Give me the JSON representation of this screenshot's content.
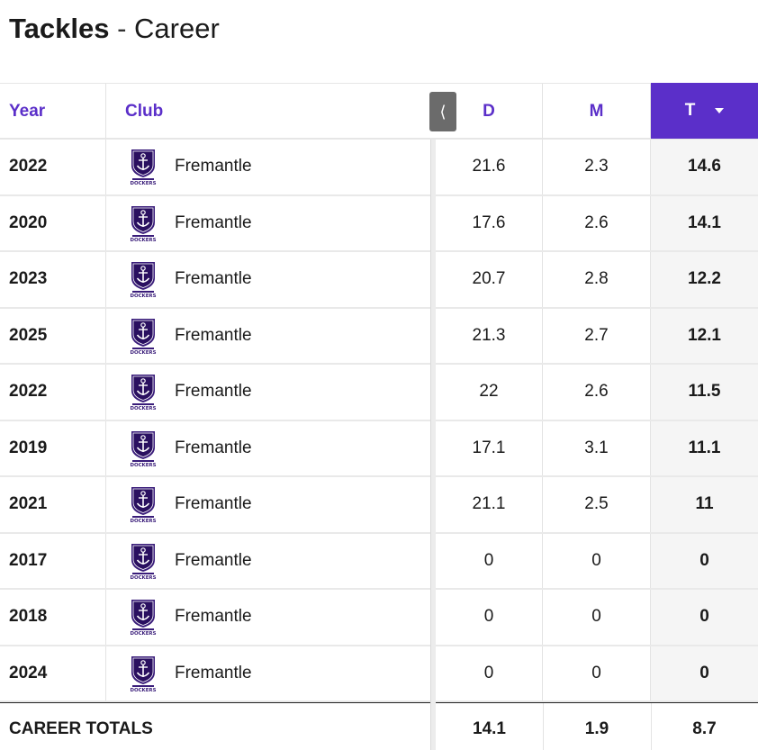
{
  "title": {
    "strong": "Tackles",
    "separator": " - ",
    "light": "Career"
  },
  "table": {
    "headers": {
      "year": "Year",
      "club": "Club",
      "d": "D",
      "m": "M",
      "t": "T"
    },
    "collapse_glyph": "⟨",
    "rows": [
      {
        "year": "2022",
        "club": "Fremantle",
        "d": "21.6",
        "m": "2.3",
        "t": "14.6"
      },
      {
        "year": "2020",
        "club": "Fremantle",
        "d": "17.6",
        "m": "2.6",
        "t": "14.1"
      },
      {
        "year": "2023",
        "club": "Fremantle",
        "d": "20.7",
        "m": "2.8",
        "t": "12.2"
      },
      {
        "year": "2025",
        "club": "Fremantle",
        "d": "21.3",
        "m": "2.7",
        "t": "12.1"
      },
      {
        "year": "2022",
        "club": "Fremantle",
        "d": "22",
        "m": "2.6",
        "t": "11.5"
      },
      {
        "year": "2019",
        "club": "Fremantle",
        "d": "17.1",
        "m": "3.1",
        "t": "11.1"
      },
      {
        "year": "2021",
        "club": "Fremantle",
        "d": "21.1",
        "m": "2.5",
        "t": "11"
      },
      {
        "year": "2017",
        "club": "Fremantle",
        "d": "0",
        "m": "0",
        "t": "0"
      },
      {
        "year": "2018",
        "club": "Fremantle",
        "d": "0",
        "m": "0",
        "t": "0"
      },
      {
        "year": "2024",
        "club": "Fremantle",
        "d": "0",
        "m": "0",
        "t": "0"
      }
    ],
    "totals": {
      "label": "CAREER TOTALS",
      "d": "14.1",
      "m": "1.9",
      "t": "8.7"
    }
  },
  "logo": {
    "name": "fremantle-dockers-logo",
    "text": "DOCKERS"
  },
  "colors": {
    "accent": "#5b2fc9",
    "sorted_bg": "#f5f5f5",
    "button_bg": "#6b6b6b"
  }
}
